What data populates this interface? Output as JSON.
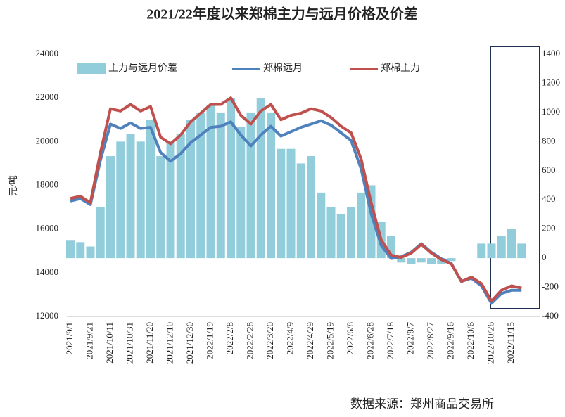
{
  "chart_data": {
    "type": "combo",
    "title": "2021/22年度以来郑棉主力与远月价格及价差",
    "y_label": "元/吨",
    "source": "数据来源：郑州商品交易所",
    "categories": [
      "2021/9/1",
      null,
      "2021/9/21",
      null,
      "2021/10/11",
      null,
      "2021/10/31",
      null,
      "2021/11/20",
      null,
      "2021/12/10",
      null,
      "2021/12/30",
      null,
      "2022/1/19",
      null,
      "2022/2/8",
      null,
      "2022/2/28",
      null,
      "2022/3/20",
      null,
      "2022/4/9",
      null,
      "2022/4/29",
      null,
      "2022/5/19",
      null,
      "2022/6/8",
      null,
      "2022/6/28",
      null,
      "2022/7/18",
      null,
      "2022/8/7",
      null,
      "2022/8/27",
      null,
      "2022/9/16",
      null,
      "2022/10/6",
      null,
      "2022/10/26",
      null,
      "2022/11/15",
      null
    ],
    "series": [
      {
        "name": "主力与远月价差",
        "type": "bar",
        "axis": "y2",
        "color": "#92cddc",
        "values": [
          120,
          110,
          80,
          350,
          700,
          800,
          850,
          800,
          950,
          700,
          800,
          850,
          950,
          1000,
          1050,
          1000,
          1100,
          900,
          1000,
          1100,
          1000,
          750,
          750,
          650,
          700,
          450,
          350,
          300,
          350,
          450,
          500,
          250,
          150,
          -30,
          -40,
          -30,
          -40,
          -40,
          -20,
          null,
          null,
          100,
          100,
          150,
          200,
          100
        ]
      },
      {
        "name": "郑棉远月",
        "type": "line",
        "color": "#4f81bd",
        "values": [
          17280,
          17390,
          17120,
          19150,
          20800,
          20600,
          20850,
          20600,
          20650,
          19500,
          19100,
          19450,
          19950,
          20300,
          20650,
          20700,
          20900,
          20300,
          19800,
          20300,
          20700,
          20250,
          20450,
          20650,
          20800,
          20950,
          20750,
          20400,
          20050,
          18750,
          16700,
          15250,
          14650,
          14730,
          14940,
          15330,
          14940,
          14640,
          14420,
          13600,
          13750,
          13400,
          12600,
          13050,
          13200,
          13200
        ]
      },
      {
        "name": "郑棉主力",
        "type": "line",
        "color": "#c0504d",
        "values": [
          17400,
          17500,
          17200,
          19500,
          21500,
          21400,
          21700,
          21400,
          21600,
          20200,
          19900,
          20300,
          20900,
          21300,
          21700,
          21700,
          22000,
          21200,
          20800,
          21400,
          21700,
          21000,
          21200,
          21300,
          21500,
          21400,
          21100,
          20700,
          20400,
          19200,
          17200,
          15500,
          14800,
          14700,
          14900,
          15300,
          14900,
          14600,
          14400,
          13600,
          13800,
          13500,
          12700,
          13200,
          13400,
          13300
        ]
      }
    ],
    "ylim": [
      12000,
      24000
    ],
    "yticks": [
      12000,
      14000,
      16000,
      18000,
      20000,
      22000,
      24000
    ],
    "y2lim": [
      -400,
      1400
    ],
    "y2ticks": [
      -400,
      -200,
      0,
      200,
      400,
      600,
      800,
      1000,
      1200,
      1400
    ]
  }
}
